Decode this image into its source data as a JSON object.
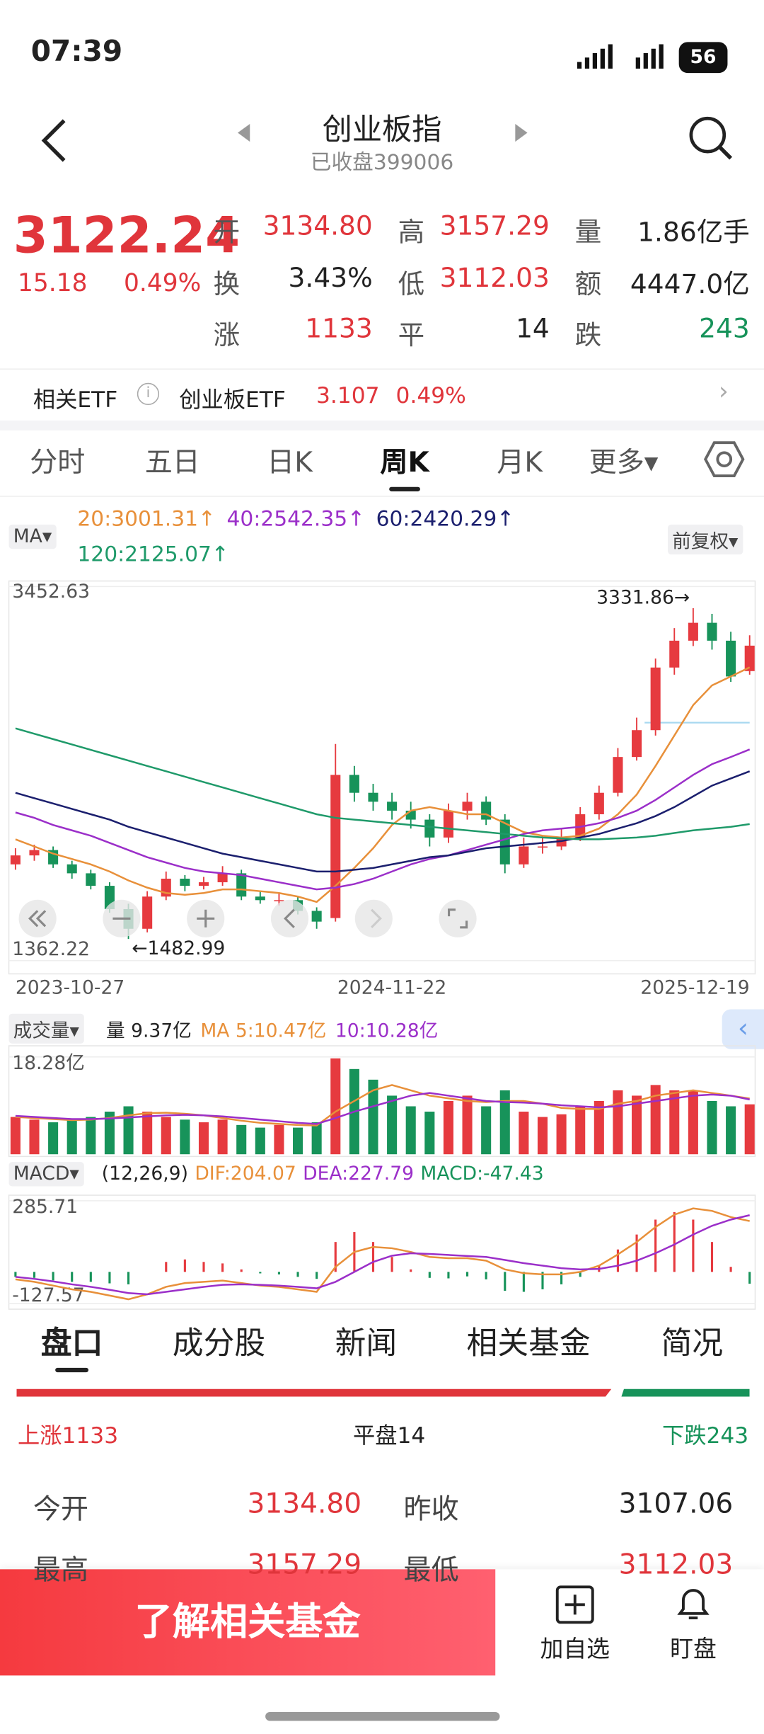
{
  "status_bar": {
    "time": "07:39",
    "battery": "56"
  },
  "header": {
    "title": "创业板指",
    "subtitle": "已收盘399006"
  },
  "quote": {
    "price": "3122.24",
    "change": "15.18",
    "change_pct": "0.49%",
    "fields": [
      [
        {
          "label": "开",
          "value": "3134.80"
        },
        {
          "label": "高",
          "value": "3157.29"
        },
        {
          "label": "量",
          "value": "1.86亿手"
        }
      ],
      [
        {
          "label": "换",
          "value": "3.43%"
        },
        {
          "label": "低",
          "value": "3112.03"
        },
        {
          "label": "额",
          "value": "4447.0亿"
        }
      ],
      [
        {
          "label": "涨",
          "value": "1133"
        },
        {
          "label": "平",
          "value": "14"
        },
        {
          "label": "跌",
          "value": "243"
        }
      ]
    ]
  },
  "etf": {
    "label": "相关ETF",
    "name": "创业板ETF",
    "price": "3.107",
    "change_pct": "0.49%"
  },
  "period_tabs": [
    "分时",
    "五日",
    "日K",
    "周K",
    "月K",
    "更多"
  ],
  "active_period": 3,
  "chart_controls": {
    "indicator": "MA",
    "adjust": "前复权"
  },
  "chart_data": [
    {
      "type": "candlestick",
      "categories": [
        "2023-10-27",
        null,
        null,
        null,
        null,
        null,
        null,
        null,
        null,
        null,
        null,
        null,
        null,
        null,
        null,
        null,
        null,
        null,
        null,
        null,
        "2024-11-22",
        null,
        null,
        null,
        null,
        null,
        null,
        null,
        null,
        null,
        null,
        null,
        null,
        null,
        null,
        null,
        null,
        null,
        null,
        "2025-12-19"
      ],
      "open": [
        1900,
        1950,
        1980,
        1900,
        1850,
        1780,
        1650,
        1540,
        1720,
        1820,
        1780,
        1800,
        1850,
        1720,
        1700,
        1700,
        1640,
        1600,
        2400,
        2300,
        2250,
        2200,
        2150,
        2050,
        2200,
        2250,
        2150,
        1900,
        2000,
        2000,
        2050,
        2180,
        2300,
        2500,
        2650,
        3000,
        3150,
        3250,
        3150,
        2980
      ],
      "close": [
        1950,
        1980,
        1900,
        1850,
        1780,
        1650,
        1540,
        1720,
        1820,
        1780,
        1800,
        1850,
        1720,
        1700,
        1700,
        1640,
        1580,
        2400,
        2300,
        2250,
        2200,
        2150,
        2050,
        2200,
        2250,
        2150,
        1900,
        2000,
        2000,
        2050,
        2180,
        2300,
        2500,
        2650,
        3000,
        3150,
        3250,
        3150,
        2950,
        3122.24
      ],
      "high": [
        1990,
        2010,
        2000,
        1920,
        1870,
        1800,
        1680,
        1750,
        1860,
        1840,
        1830,
        1890,
        1870,
        1750,
        1740,
        1720,
        1660,
        2573,
        2450,
        2350,
        2300,
        2250,
        2180,
        2240,
        2300,
        2280,
        2180,
        2050,
        2060,
        2100,
        2220,
        2340,
        2550,
        2720,
        3050,
        3220,
        3331.86,
        3300,
        3200,
        3180
      ],
      "low": [
        1870,
        1920,
        1880,
        1820,
        1760,
        1630,
        1482.99,
        1520,
        1700,
        1750,
        1760,
        1780,
        1700,
        1680,
        1670,
        1620,
        1540,
        1580,
        2250,
        2200,
        2150,
        2100,
        2000,
        2020,
        2150,
        2120,
        1850,
        1880,
        1960,
        1980,
        2030,
        2150,
        2280,
        2480,
        2620,
        2960,
        3120,
        3100,
        2920,
        2960
      ],
      "up_color": "#e63a3f",
      "down_color": "#17935a",
      "ylim": [
        1362.22,
        3452.63
      ],
      "yticks": [
        1362.22,
        3452.63
      ],
      "series": [
        {
          "name": "20:3001.31↑",
          "color": "#e8903a",
          "values": [
            2040,
            2000,
            1960,
            1930,
            1900,
            1860,
            1810,
            1770,
            1740,
            1730,
            1740,
            1760,
            1760,
            1750,
            1740,
            1720,
            1690,
            1780,
            1880,
            1990,
            2120,
            2200,
            2220,
            2200,
            2180,
            2180,
            2130,
            2080,
            2060,
            2050,
            2060,
            2100,
            2180,
            2290,
            2450,
            2620,
            2790,
            2900,
            2950,
            3001.31
          ]
        },
        {
          "name": "40:2542.35↑",
          "color": "#9b2fc9",
          "values": [
            2190,
            2160,
            2120,
            2090,
            2060,
            2020,
            1980,
            1940,
            1910,
            1880,
            1860,
            1850,
            1840,
            1820,
            1800,
            1780,
            1760,
            1770,
            1790,
            1820,
            1860,
            1900,
            1930,
            1950,
            1980,
            2010,
            2040,
            2070,
            2090,
            2100,
            2110,
            2130,
            2160,
            2200,
            2260,
            2330,
            2400,
            2460,
            2500,
            2542.35
          ]
        },
        {
          "name": "60:2420.29↑",
          "color": "#1b1f6e",
          "values": [
            2300,
            2270,
            2240,
            2210,
            2180,
            2150,
            2110,
            2080,
            2050,
            2020,
            1990,
            1960,
            1940,
            1920,
            1900,
            1880,
            1860,
            1860,
            1870,
            1880,
            1900,
            1920,
            1940,
            1950,
            1970,
            1990,
            2000,
            2010,
            2020,
            2030,
            2050,
            2070,
            2100,
            2130,
            2170,
            2220,
            2280,
            2340,
            2380,
            2420.29
          ]
        },
        {
          "name": "120:2125.07↑",
          "color": "#1f9a6a",
          "values": [
            2660,
            2630,
            2600,
            2570,
            2540,
            2510,
            2480,
            2450,
            2420,
            2390,
            2360,
            2330,
            2300,
            2270,
            2240,
            2210,
            2180,
            2160,
            2150,
            2140,
            2130,
            2120,
            2110,
            2100,
            2090,
            2080,
            2070,
            2060,
            2050,
            2045,
            2040,
            2040,
            2045,
            2050,
            2060,
            2075,
            2090,
            2100,
            2110,
            2125.07
          ]
        }
      ],
      "annotations": [
        {
          "label": "3331.86→",
          "value": 3331.86
        },
        {
          "label": "←1482.99",
          "value": 1482.99
        }
      ]
    },
    {
      "type": "bar",
      "title": "成交量",
      "label": "量 9.37亿",
      "values": [
        7,
        6.5,
        6,
        6.5,
        7,
        8,
        9,
        8,
        7,
        6.5,
        6,
        6.5,
        5.5,
        5,
        5.5,
        5,
        6,
        18,
        16,
        14,
        11,
        9,
        8,
        10,
        11,
        9,
        12,
        8,
        7,
        7.5,
        9,
        10,
        12,
        11,
        13,
        12,
        12,
        10,
        9,
        9.37
      ],
      "ylim": [
        0,
        18.28
      ],
      "yticks": [
        {
          "value": 18.28,
          "label": "18.28亿"
        }
      ],
      "series": [
        {
          "name": "MA 5:10.47亿",
          "color": "#e8903a",
          "values": [
            7,
            6.8,
            6.6,
            6.4,
            6.5,
            6.8,
            7.3,
            7.7,
            7.8,
            7.6,
            7.3,
            6.8,
            6.3,
            5.9,
            5.7,
            5.5,
            5.4,
            8,
            10,
            12,
            13,
            12,
            11,
            10.5,
            10,
            9.8,
            10,
            10,
            9.5,
            8.7,
            8.5,
            8.5,
            9.5,
            10,
            11,
            11.5,
            12,
            11.5,
            11,
            10.47
          ]
        },
        {
          "name": "10:10.28亿",
          "color": "#9b2fc9",
          "values": [
            7.2,
            7,
            6.8,
            6.6,
            6.6,
            6.7,
            6.9,
            7.1,
            7.3,
            7.4,
            7.3,
            7.1,
            6.8,
            6.5,
            6.2,
            5.9,
            5.7,
            6.8,
            8,
            9,
            10,
            11,
            11.5,
            11,
            10.5,
            10,
            9.8,
            9.7,
            9.5,
            9.2,
            9,
            8.8,
            9,
            9.5,
            10,
            10.5,
            11,
            11.2,
            11,
            10.28
          ]
        }
      ]
    },
    {
      "type": "macd",
      "title": "MACD",
      "params": "(12,26,9)",
      "hist_name": "MACD:-47.43",
      "values": [
        -20,
        -24,
        -34,
        -40,
        -40,
        -46,
        -50,
        0,
        40,
        50,
        40,
        34,
        10,
        -6,
        -10,
        -20,
        -28,
        120,
        160,
        120,
        60,
        10,
        -24,
        -26,
        -18,
        -30,
        -76,
        -80,
        -70,
        -50,
        -20,
        26,
        90,
        150,
        210,
        240,
        210,
        120,
        20,
        -47.43
      ],
      "ylim": [
        -127.57,
        285.71
      ],
      "yticks": [
        -127.57,
        285.71
      ],
      "series": [
        {
          "name": "DIF:204.07",
          "color": "#e8903a",
          "values": [
            -30,
            -40,
            -55,
            -70,
            -80,
            -95,
            -110,
            -90,
            -60,
            -45,
            -40,
            -35,
            -45,
            -55,
            -60,
            -70,
            -80,
            20,
            80,
            100,
            95,
            80,
            60,
            55,
            55,
            45,
            10,
            -5,
            -10,
            -10,
            0,
            25,
            70,
            120,
            180,
            230,
            255,
            245,
            220,
            204.07
          ]
        },
        {
          "name": "DEA:227.79",
          "color": "#9b2fc9",
          "values": [
            -20,
            -28,
            -38,
            -50,
            -60,
            -72,
            -85,
            -90,
            -80,
            -70,
            -60,
            -52,
            -50,
            -52,
            -55,
            -60,
            -66,
            -40,
            0,
            40,
            65,
            75,
            72,
            68,
            64,
            60,
            48,
            35,
            25,
            15,
            10,
            12,
            25,
            45,
            75,
            110,
            150,
            185,
            210,
            227.79
          ]
        }
      ]
    }
  ],
  "detail_tabs": [
    "盘口",
    "成分股",
    "新闻",
    "相关基金",
    "简况"
  ],
  "breadth": {
    "up": "上涨1133",
    "flat": "平盘14",
    "down": "下跌243"
  },
  "details": [
    [
      {
        "label": "今开",
        "value": "3134.80"
      },
      {
        "label": "昨收",
        "value": "3107.06"
      }
    ],
    [
      {
        "label": "最高",
        "value": "3157.29"
      },
      {
        "label": "最低",
        "value": "3112.03"
      }
    ]
  ],
  "bottom_bar": {
    "button": "了解相关基金",
    "actions": [
      "加自选",
      "盯盘"
    ]
  }
}
